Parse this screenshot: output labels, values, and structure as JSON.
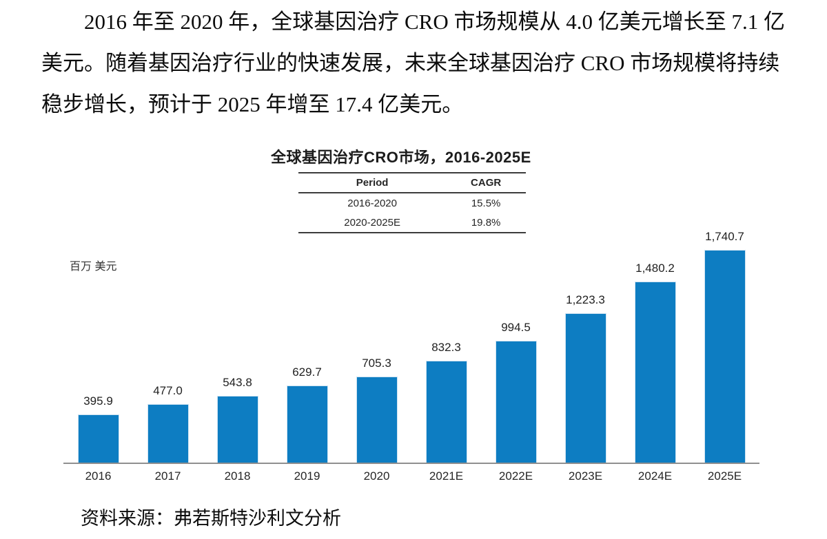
{
  "paragraph": {
    "line1": "2016 年至 2020 年，全球基因治疗 CRO 市场规模从 4.0 亿美元增长至 7.1 亿",
    "line2": "美元。随着基因治疗行业的快速发展，未来全球基因治疗 CRO 市场规模将持续",
    "line3": "稳步增长，预计于 2025 年增至 17.4 亿美元。"
  },
  "chart": {
    "title": "全球基因治疗CRO市场，2016-2025E",
    "unit_label": "百万 美元",
    "cagr_table": {
      "headers": [
        "Period",
        "CAGR"
      ],
      "rows": [
        [
          "2016-2020",
          "15.5%"
        ],
        [
          "2020-2025E",
          "19.8%"
        ]
      ]
    },
    "source": "资料来源：弗若斯特沙利文分析"
  },
  "chart_data": {
    "type": "bar",
    "title": "全球基因治疗CRO市场，2016-2025E",
    "xlabel": "",
    "ylabel": "百万 美元",
    "categories": [
      "2016",
      "2017",
      "2018",
      "2019",
      "2020",
      "2021E",
      "2022E",
      "2023E",
      "2024E",
      "2025E"
    ],
    "values": [
      395.9,
      477.0,
      543.8,
      629.7,
      705.3,
      832.3,
      994.5,
      1223.3,
      1480.2,
      1740.7
    ],
    "value_labels": [
      "395.9",
      "477.0",
      "543.8",
      "629.7",
      "705.3",
      "832.3",
      "994.5",
      "1,223.3",
      "1,480.2",
      "1,740.7"
    ],
    "ylim": [
      0,
      1870
    ],
    "grid": false,
    "legend": "none",
    "bar_color": "#0d7dc2",
    "axis_color": "#8f8f8f",
    "annotations": {
      "cagr_2016_2020": "15.5%",
      "cagr_2020_2025E": "19.8%"
    }
  },
  "colors": {
    "bar": "#0d7dc2",
    "bar_border": "#cfe3f2",
    "axis": "#8f8f8f",
    "text": "#0c0c0c",
    "table_line": "#3c3c3c"
  }
}
